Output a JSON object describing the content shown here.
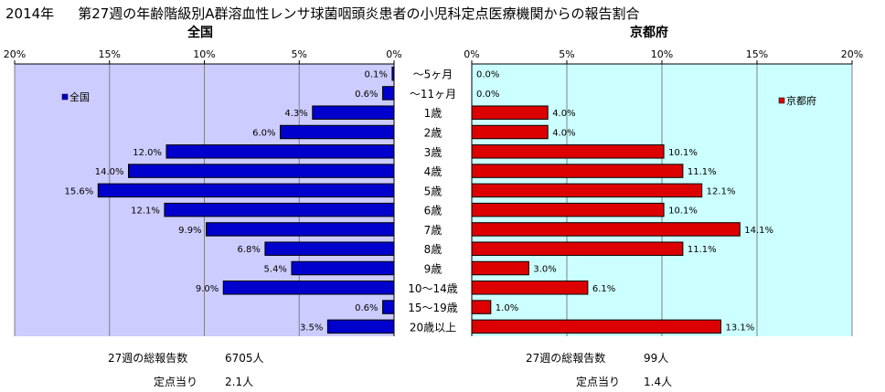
{
  "header": {
    "year": "2014年",
    "title": "第27週の年齢階級別A群溶血性レンサ球菌咽頭炎患者の小児科定点医療機関からの報告割合"
  },
  "colors": {
    "plot_bg": "#ccccff",
    "right_plot_bg": "#ccffff",
    "left_bar": "#0000cc",
    "right_bar": "#dd0000",
    "grid": "#808080"
  },
  "chart_data": [
    {
      "type": "bar",
      "orientation": "horizontal-reversed",
      "title": "全国",
      "legend": "全国",
      "legend_position": "top-left",
      "categories": [
        "～5ヶ月",
        "～11ヶ月",
        "1歳",
        "2歳",
        "3歳",
        "4歳",
        "5歳",
        "6歳",
        "7歳",
        "8歳",
        "9歳",
        "10～14歳",
        "15～19歳",
        "20歳以上"
      ],
      "series": [
        {
          "name": "全国",
          "values": [
            0.1,
            0.6,
            4.3,
            6.0,
            12.0,
            14.0,
            15.6,
            12.1,
            9.9,
            6.8,
            5.4,
            9.0,
            0.6,
            3.5
          ]
        }
      ],
      "data_labels": [
        "0.1%",
        "0.6%",
        "4.3%",
        "6.0%",
        "12.0%",
        "14.0%",
        "15.6%",
        "12.1%",
        "9.9%",
        "6.8%",
        "5.4%",
        "9.0%",
        "0.6%",
        "3.5%"
      ],
      "xlim": [
        0,
        20
      ],
      "ticks": [
        "20%",
        "15%",
        "10%",
        "5%",
        "0%"
      ],
      "grid": true
    },
    {
      "type": "bar",
      "orientation": "horizontal",
      "title": "京都府",
      "legend": "京都府",
      "legend_position": "top-right",
      "categories": [
        "～5ヶ月",
        "～11ヶ月",
        "1歳",
        "2歳",
        "3歳",
        "4歳",
        "5歳",
        "6歳",
        "7歳",
        "8歳",
        "9歳",
        "10～14歳",
        "15～19歳",
        "20歳以上"
      ],
      "series": [
        {
          "name": "京都府",
          "values": [
            0.0,
            0.0,
            4.0,
            4.0,
            10.1,
            11.1,
            12.1,
            10.1,
            14.1,
            11.1,
            3.0,
            6.1,
            1.0,
            13.1
          ]
        }
      ],
      "data_labels": [
        "0.0%",
        "0.0%",
        "4.0%",
        "4.0%",
        "10.1%",
        "11.1%",
        "12.1%",
        "10.1%",
        "14.1%",
        "11.1%",
        "3.0%",
        "6.1%",
        "1.0%",
        "13.1%"
      ],
      "xlim": [
        0,
        20
      ],
      "ticks": [
        "0%",
        "5%",
        "10%",
        "15%",
        "20%"
      ],
      "grid": true
    }
  ],
  "footer": {
    "left_total_label": "27週の総報告数",
    "left_total_value": "6705人",
    "left_per_label": "定点当り",
    "left_per_value": "2.1人",
    "right_total_label": "27週の総報告数",
    "right_total_value": "99人",
    "right_per_label": "定点当り",
    "right_per_value": "1.4人"
  }
}
